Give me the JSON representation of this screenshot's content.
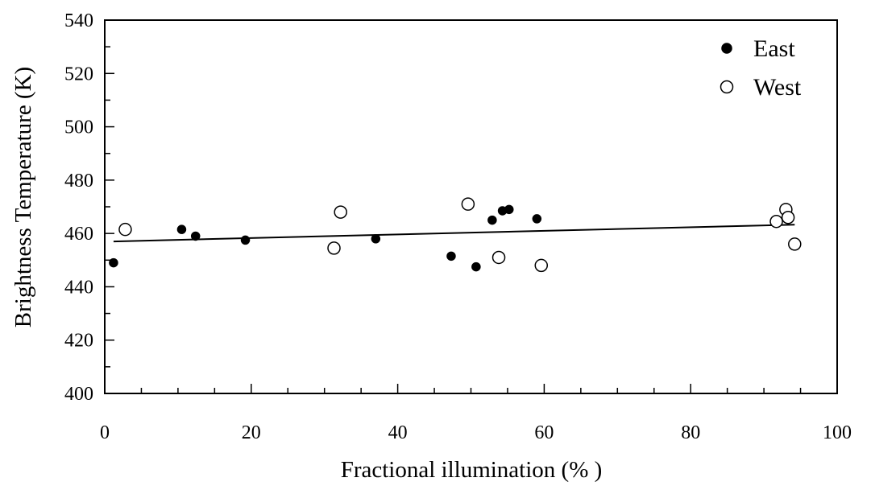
{
  "chart_data": {
    "type": "scatter",
    "xlabel": "Fractional illumination (% )",
    "ylabel": "Brightness Temperature (K)",
    "xlim": [
      0,
      100
    ],
    "ylim": [
      400,
      540
    ],
    "x_ticks": [
      "0",
      "20",
      "40",
      "60",
      "80",
      "100"
    ],
    "y_ticks": [
      "400",
      "420",
      "440",
      "460",
      "480",
      "500",
      "520",
      "540"
    ],
    "grid": false,
    "legend_position": "top-right",
    "series": [
      {
        "name": "East",
        "marker": "filled-circle",
        "color": "#000000",
        "points": [
          {
            "x": 1.2,
            "y": 449
          },
          {
            "x": 10.5,
            "y": 461.5
          },
          {
            "x": 12.4,
            "y": 459
          },
          {
            "x": 19.2,
            "y": 457.5
          },
          {
            "x": 37.0,
            "y": 458
          },
          {
            "x": 47.3,
            "y": 451.5
          },
          {
            "x": 50.7,
            "y": 447.5
          },
          {
            "x": 52.9,
            "y": 465
          },
          {
            "x": 54.3,
            "y": 468.5
          },
          {
            "x": 55.2,
            "y": 469
          },
          {
            "x": 59.0,
            "y": 465.5
          }
        ]
      },
      {
        "name": "West",
        "marker": "open-circle",
        "color": "#000000",
        "points": [
          {
            "x": 2.8,
            "y": 461.5
          },
          {
            "x": 31.3,
            "y": 454.5
          },
          {
            "x": 32.2,
            "y": 468
          },
          {
            "x": 49.6,
            "y": 471
          },
          {
            "x": 53.8,
            "y": 451
          },
          {
            "x": 59.6,
            "y": 448
          },
          {
            "x": 91.7,
            "y": 464.5
          },
          {
            "x": 93.0,
            "y": 469
          },
          {
            "x": 93.3,
            "y": 466
          },
          {
            "x": 94.2,
            "y": 456
          }
        ]
      }
    ],
    "trendline": {
      "type": "linear",
      "x_range": [
        1.2,
        94.2
      ],
      "y_range": [
        457,
        463.3
      ]
    }
  }
}
